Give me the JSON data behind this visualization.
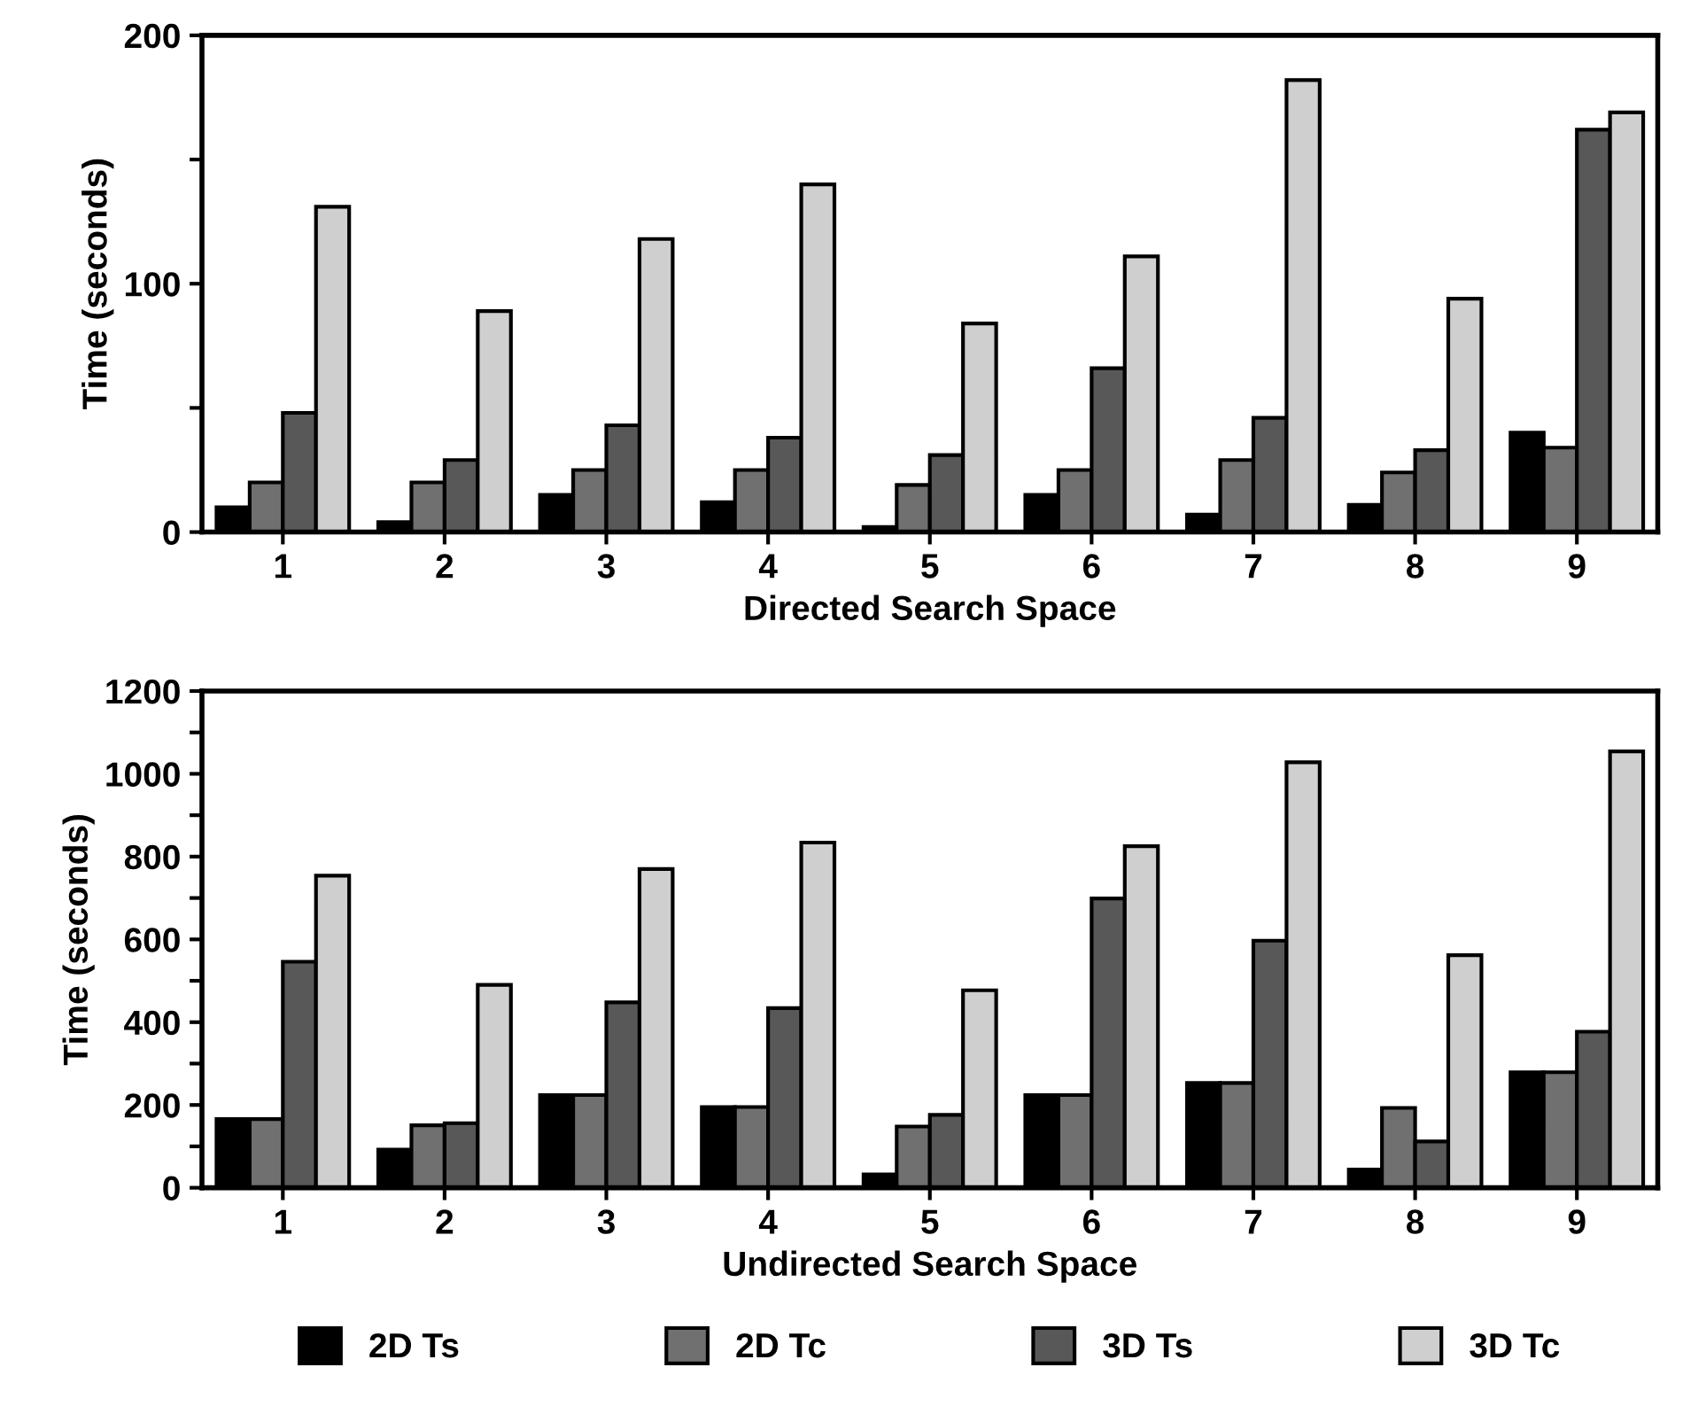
{
  "chart_data": [
    {
      "type": "bar",
      "xlabel": "Directed Search Space",
      "ylabel": "Time (seconds)",
      "categories": [
        "1",
        "2",
        "3",
        "4",
        "5",
        "6",
        "7",
        "8",
        "9"
      ],
      "series": [
        {
          "color": "#000000",
          "values": [
            10,
            4,
            15,
            12,
            2,
            15,
            7,
            11,
            40
          ]
        },
        {
          "color": "#707070",
          "values": [
            20,
            20,
            25,
            25,
            19,
            25,
            29,
            24,
            34
          ]
        },
        {
          "color": "#585858",
          "values": [
            48,
            29,
            43,
            38,
            31,
            66,
            46,
            33,
            162
          ]
        },
        {
          "color": "#cfcfcf",
          "values": [
            131,
            89,
            118,
            140,
            84,
            111,
            182,
            94,
            169
          ]
        }
      ],
      "ylim": [
        0,
        200
      ],
      "yticks": [
        0,
        {
          "value": 50,
          "label": null
        },
        100,
        {
          "value": 150,
          "label": null
        },
        200
      ]
    },
    {
      "type": "bar",
      "xlabel": "Undirected Search Space",
      "ylabel": "Time (seconds)",
      "categories": [
        "1",
        "2",
        "3",
        "4",
        "5",
        "6",
        "7",
        "8",
        "9"
      ],
      "series": [
        {
          "name": "2D Ts",
          "color": "#000000",
          "values": [
            166,
            92,
            224,
            195,
            32,
            224,
            253,
            44,
            279
          ]
        },
        {
          "name": "2D Tc",
          "color": "#707070",
          "values": [
            166,
            151,
            224,
            195,
            148,
            224,
            253,
            193,
            279
          ]
        },
        {
          "name": "3D Ts",
          "color": "#585858",
          "values": [
            546,
            156,
            448,
            434,
            176,
            699,
            597,
            112,
            377
          ]
        },
        {
          "name": "3D Tc",
          "color": "#cfcfcf",
          "values": [
            754,
            490,
            770,
            834,
            477,
            825,
            1028,
            562,
            1054
          ]
        }
      ],
      "ylim": [
        0,
        1200
      ],
      "yticks": [
        0,
        {
          "value": 100,
          "label": null
        },
        200,
        {
          "value": 300,
          "label": null
        },
        400,
        {
          "value": 500,
          "label": null
        },
        600,
        {
          "value": 700,
          "label": null
        },
        800,
        {
          "value": 900,
          "label": null
        },
        1000,
        {
          "value": 1100,
          "label": null
        },
        1200
      ],
      "legend": "bottom"
    }
  ]
}
